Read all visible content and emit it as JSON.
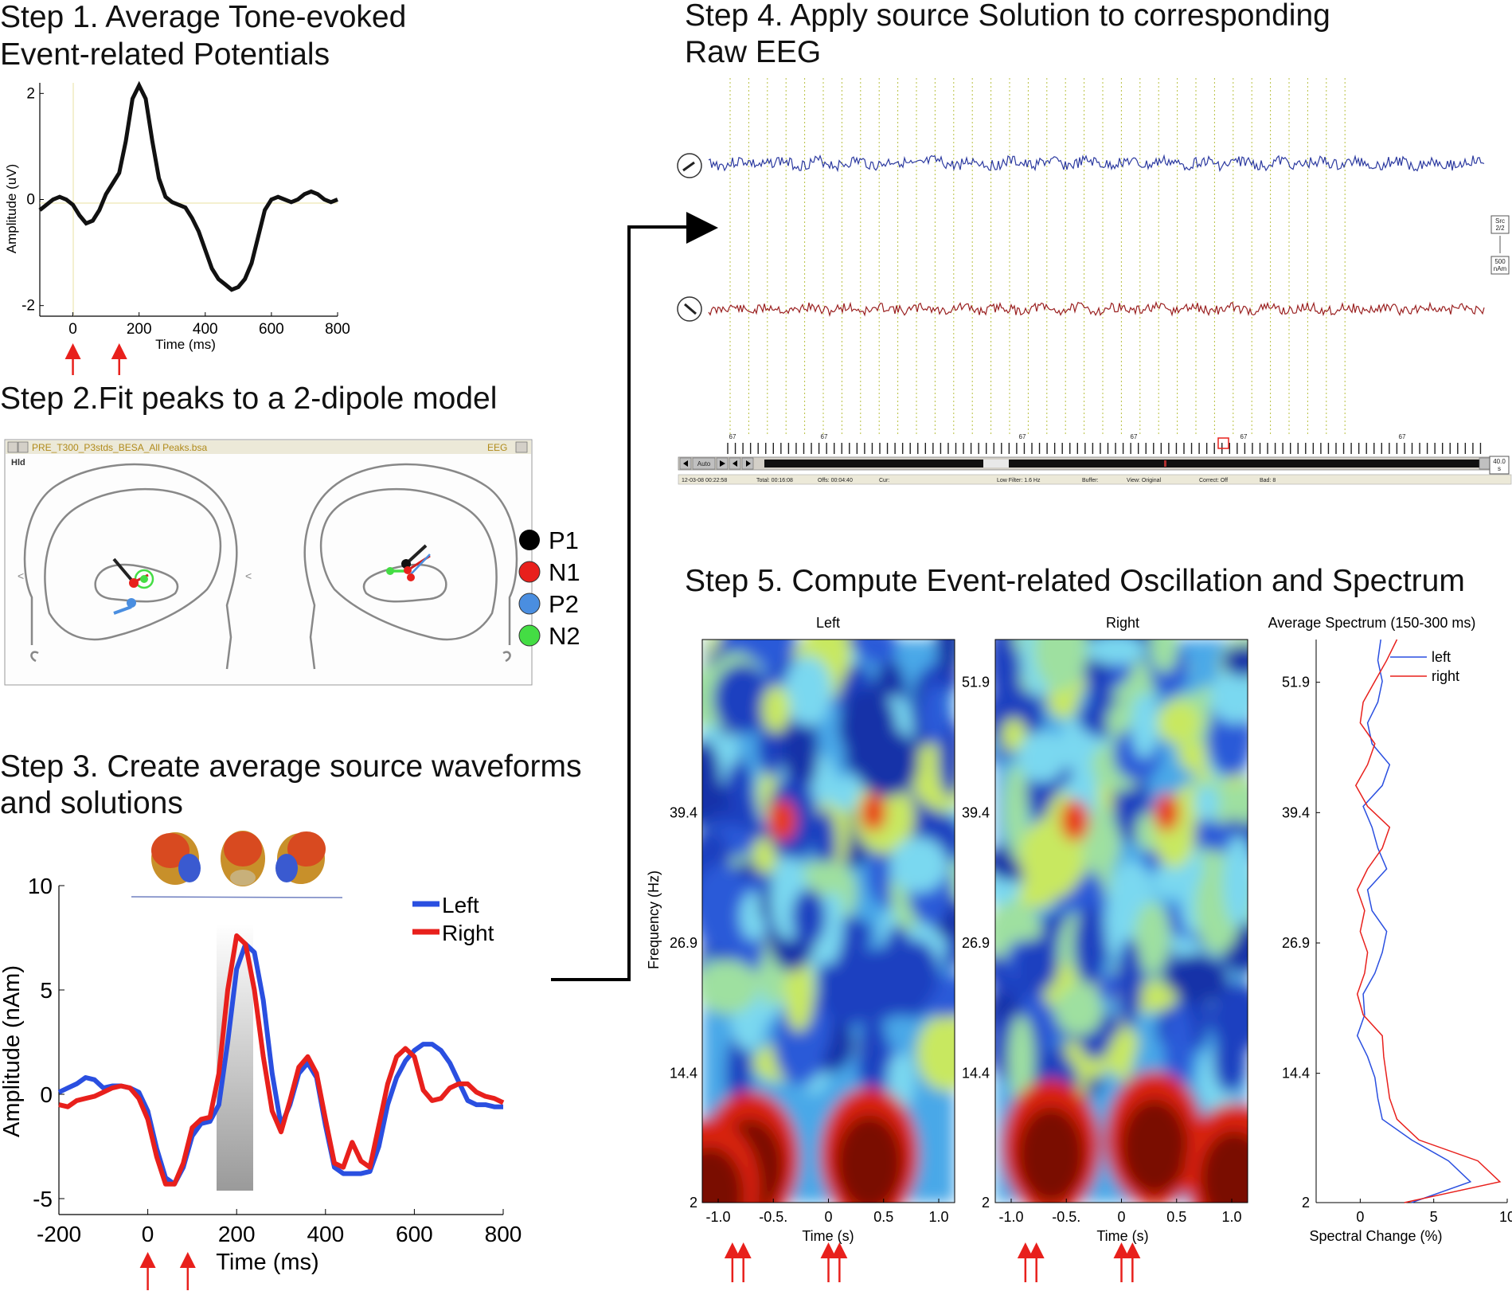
{
  "colors": {
    "left": "#2a4fe0",
    "right": "#e8201c",
    "arrow": "#e8201c",
    "eeg_top": "#2c3aa0",
    "eeg_bottom": "#9a2020",
    "grid": "#b8c040"
  },
  "step1": {
    "title_line1": "Step 1.  Average Tone-evoked",
    "title_line2": "Event-related Potentials",
    "ylabel": "Amplitude (uV)",
    "xlabel": "Time (ms)",
    "xticks": [
      "0",
      "200",
      "400",
      "600",
      "800"
    ],
    "yticks": [
      "2",
      "0",
      "-2"
    ],
    "xlim": [
      -100,
      800
    ],
    "ylim": [
      -2.2,
      2.2
    ],
    "arrows_ms": [
      0,
      140
    ],
    "series": {
      "t": [
        -100,
        -80,
        -60,
        -40,
        -20,
        0,
        20,
        40,
        60,
        80,
        100,
        120,
        140,
        160,
        180,
        200,
        220,
        240,
        260,
        280,
        300,
        320,
        340,
        360,
        380,
        400,
        420,
        440,
        460,
        480,
        500,
        520,
        540,
        560,
        580,
        600,
        620,
        640,
        660,
        680,
        700,
        720,
        740,
        760,
        780,
        800
      ],
      "v": [
        -0.2,
        -0.1,
        0.0,
        0.05,
        0.0,
        -0.1,
        -0.3,
        -0.45,
        -0.4,
        -0.2,
        0.1,
        0.3,
        0.5,
        1.1,
        1.9,
        2.15,
        1.9,
        1.1,
        0.4,
        0.05,
        -0.05,
        -0.1,
        -0.15,
        -0.35,
        -0.6,
        -0.95,
        -1.3,
        -1.5,
        -1.6,
        -1.7,
        -1.65,
        -1.5,
        -1.2,
        -0.7,
        -0.2,
        0.0,
        0.05,
        0.0,
        -0.05,
        0.0,
        0.1,
        0.15,
        0.1,
        0.0,
        -0.05,
        0.0
      ]
    }
  },
  "step2": {
    "title": "Step 2.Fit peaks to a 2-dipole model",
    "window_title": "PRE_T300_P3stds_BESA_All Peaks.bsa",
    "window_right": "EEG",
    "window_label": "Hld",
    "legend": [
      {
        "label": "P1",
        "color": "#000000"
      },
      {
        "label": "N1",
        "color": "#e8201c"
      },
      {
        "label": "P2",
        "color": "#4a8ee0"
      },
      {
        "label": "N2",
        "color": "#44dd44"
      }
    ]
  },
  "step3": {
    "title_line1": "Step 3. Create average source waveforms",
    "title_line2": "and solutions",
    "ylabel": "Amplitude (nAm)",
    "xlabel": "Time (ms)",
    "xticks": [
      "-200",
      "0",
      "200",
      "400",
      "600",
      "800"
    ],
    "yticks": [
      "10",
      "5",
      "0",
      "-5"
    ],
    "xlim": [
      -200,
      800
    ],
    "ylim": [
      -5,
      10
    ],
    "legend": [
      "Left",
      "Right"
    ],
    "arrows_ms": [
      0,
      90
    ],
    "shade_ms": [
      150,
      250
    ],
    "series": [
      {
        "name": "Left",
        "t": [
          -200,
          -180,
          -160,
          -140,
          -120,
          -100,
          -80,
          -60,
          -40,
          -20,
          0,
          20,
          40,
          60,
          80,
          100,
          120,
          140,
          160,
          180,
          200,
          220,
          240,
          260,
          280,
          300,
          320,
          340,
          360,
          380,
          400,
          420,
          440,
          460,
          480,
          500,
          520,
          540,
          560,
          580,
          600,
          620,
          640,
          660,
          680,
          700,
          720,
          740,
          760,
          780,
          800
        ],
        "v": [
          0.1,
          0.3,
          0.5,
          0.8,
          0.7,
          0.3,
          0.4,
          0.4,
          0.3,
          0.1,
          -0.8,
          -2.6,
          -4.0,
          -4.3,
          -3.5,
          -2.0,
          -1.4,
          -1.3,
          -0.5,
          2.5,
          6.0,
          7.2,
          6.8,
          4.5,
          1.0,
          -1.5,
          -0.5,
          1.0,
          1.5,
          0.8,
          -1.5,
          -3.5,
          -3.8,
          -3.8,
          -3.8,
          -3.7,
          -2.5,
          -0.5,
          0.8,
          1.6,
          2.1,
          2.4,
          2.4,
          2.1,
          1.5,
          0.6,
          -0.3,
          -0.5,
          -0.5,
          -0.6,
          -0.6
        ]
      },
      {
        "name": "Right",
        "t": [
          -200,
          -180,
          -160,
          -140,
          -120,
          -100,
          -80,
          -60,
          -40,
          -20,
          0,
          20,
          40,
          60,
          80,
          100,
          120,
          140,
          160,
          180,
          200,
          220,
          240,
          260,
          280,
          300,
          320,
          340,
          360,
          380,
          400,
          420,
          440,
          460,
          480,
          500,
          520,
          540,
          560,
          580,
          600,
          620,
          640,
          660,
          680,
          700,
          720,
          740,
          760,
          780,
          800
        ],
        "v": [
          -0.5,
          -0.6,
          -0.3,
          -0.2,
          -0.1,
          0.1,
          0.3,
          0.4,
          0.3,
          -0.2,
          -1.2,
          -3.0,
          -4.3,
          -4.3,
          -3.3,
          -1.6,
          -1.2,
          -1.1,
          1.0,
          5.0,
          7.6,
          7.2,
          5.0,
          1.8,
          -0.8,
          -1.8,
          -0.3,
          1.3,
          1.8,
          1.0,
          -1.2,
          -3.3,
          -3.5,
          -2.3,
          -3.2,
          -3.5,
          -1.5,
          0.5,
          1.8,
          2.2,
          1.8,
          0.2,
          -0.3,
          -0.2,
          0.3,
          0.5,
          0.5,
          0.1,
          -0.1,
          -0.2,
          -0.4
        ]
      }
    ]
  },
  "step4": {
    "title_line1": "Step 4.  Apply source Solution to corresponding",
    "title_line2": "Raw EEG",
    "scale_box1_l1": "Src",
    "scale_box1_l2": "2/2",
    "scale_box2_l1": "500",
    "scale_box2_l2": "nAm",
    "time_box_l1": "40.0",
    "time_box_l2": "s",
    "marker": "67",
    "auto_button": "Auto",
    "status": [
      "12-03-08  00:22:58",
      "Total: 00:16:08",
      "Offs: 00:04:40",
      "Cur:",
      "Low Filter: 1.6 Hz",
      "Buffer:",
      "View: Original",
      "Correct: Off",
      "Bad: 8"
    ]
  },
  "step5": {
    "title": "Step 5. Compute Event-related Oscillation and Spectrum",
    "left_title": "Left",
    "right_title": "Right",
    "spectrum_title": "Average Spectrum (150-300 ms)",
    "ylabel": "Frequency (Hz)",
    "xlabel": "Time (s)",
    "yticks": [
      "51.9",
      "39.4",
      "26.9",
      "14.4",
      "2"
    ],
    "xticks": [
      "-1.0",
      "-0.5.",
      "0",
      "0.5",
      "1.0"
    ],
    "spec_xlabel": "Spectral Change (%)",
    "spec_xticks": [
      "0",
      "5",
      "10"
    ],
    "spec_xlim": [
      -3,
      10
    ],
    "spec_ylim": [
      2,
      56
    ],
    "spec_legend": [
      "left",
      "right"
    ],
    "arrows_s": [
      -0.9,
      -0.8,
      0,
      0.1
    ],
    "spectrum": [
      {
        "name": "left",
        "f": [
          2,
          4,
          6,
          8,
          10,
          12,
          14,
          16,
          18,
          20,
          22,
          24,
          26,
          28,
          30,
          32,
          34,
          36,
          38,
          40,
          42,
          44,
          46,
          48,
          50,
          52,
          54,
          56
        ],
        "v": [
          3.5,
          7.5,
          6.0,
          3.5,
          1.5,
          1.2,
          1.0,
          0.5,
          -0.2,
          0.3,
          0.2,
          1.0,
          1.5,
          1.8,
          0.8,
          0.5,
          1.8,
          1.2,
          0.8,
          0.2,
          1.5,
          2.0,
          0.8,
          0.5,
          1.2,
          1.5,
          1.2,
          1.4
        ]
      },
      {
        "name": "right",
        "f": [
          2,
          4,
          6,
          8,
          10,
          12,
          14,
          16,
          18,
          20,
          22,
          24,
          26,
          28,
          30,
          32,
          34,
          36,
          38,
          40,
          42,
          44,
          46,
          48,
          50,
          52,
          54,
          56
        ],
        "v": [
          3.0,
          9.5,
          8.0,
          4.0,
          2.5,
          2.0,
          1.8,
          1.6,
          1.5,
          0.2,
          -0.2,
          0.3,
          0.5,
          0.0,
          0.3,
          -0.2,
          0.5,
          1.5,
          2.0,
          0.5,
          -0.3,
          0.5,
          1.0,
          0.0,
          0.2,
          1.0,
          1.8,
          2.5
        ]
      }
    ]
  }
}
